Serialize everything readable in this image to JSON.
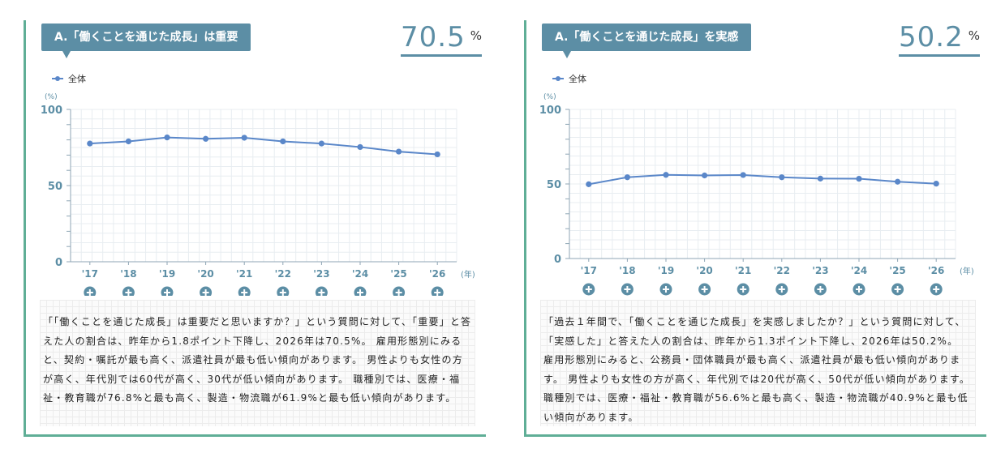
{
  "colors": {
    "accent": "#5fae96",
    "title_bg": "#5c8ea5",
    "series": "#5a87c9",
    "axis_text": "#5c8ea5"
  },
  "left": {
    "title": "A.「働くことを通じた成長」は重要",
    "big_value": "70.5",
    "big_unit": "%",
    "legend_label": "全体",
    "y_unit": "(%)",
    "x_unit": "(年)",
    "description": "「「働くことを通じた成長」は重要だと思いますか？」という質問に対して、「重要」と答えた人の割合は、昨年から1.8ポイント下降し、2026年は70.5%。 雇用形態別にみると、契約・嘱託が最も高く、派遣社員が最も低い傾向があります。 男性よりも女性の方が高く、年代別では60代が高く、30代が低い傾向があります。 職種別では、医療・福祉・教育職が76.8%と最も高く、製造・物流職が61.9%と最も低い傾向があります。"
  },
  "right": {
    "title": "A.「働くことを通じた成長」を実感",
    "big_value": "50.2",
    "big_unit": "%",
    "legend_label": "全体",
    "y_unit": "(%)",
    "x_unit": "(年)",
    "description": "「過去１年間で、「働くことを通じた成長」を実感しましたか？」という質問に対して、「実感した」と答えた人の割合は、昨年から1.3ポイント下降し、2026年は50.2%。 雇用形態別にみると、公務員・団体職員が最も高く、派遣社員が最も低い傾向があります。 男性よりも女性の方が高く、年代別では20代が高く、50代が低い傾向があります。 職種別では、医療・福祉・教育職が56.6%と最も高く、製造・物流職が40.9%と最も低い傾向があります。"
  },
  "chart_data": [
    {
      "type": "line",
      "title": "A.「働くことを通じた成長」は重要",
      "categories": [
        "'17",
        "'18",
        "'19",
        "'20",
        "'21",
        "'22",
        "'23",
        "'24",
        "'25",
        "'26"
      ],
      "series": [
        {
          "name": "全体",
          "values": [
            77.6,
            79.0,
            81.6,
            80.7,
            81.4,
            79.0,
            77.6,
            75.3,
            72.3,
            70.5
          ]
        }
      ],
      "yticks": [
        "0",
        "50",
        "100"
      ],
      "ylim": [
        0,
        100
      ],
      "grid": true,
      "legend": "top-left"
    },
    {
      "type": "line",
      "title": "A.「働くことを通じた成長」を実感",
      "categories": [
        "'17",
        "'18",
        "'19",
        "'20",
        "'21",
        "'22",
        "'23",
        "'24",
        "'25",
        "'26"
      ],
      "series": [
        {
          "name": "全体",
          "values": [
            49.8,
            54.5,
            56.1,
            55.7,
            56.0,
            54.5,
            53.6,
            53.5,
            51.5,
            50.2
          ]
        }
      ],
      "yticks": [
        "0",
        "50",
        "100"
      ],
      "ylim": [
        0,
        100
      ],
      "grid": true,
      "legend": "top-left"
    }
  ]
}
